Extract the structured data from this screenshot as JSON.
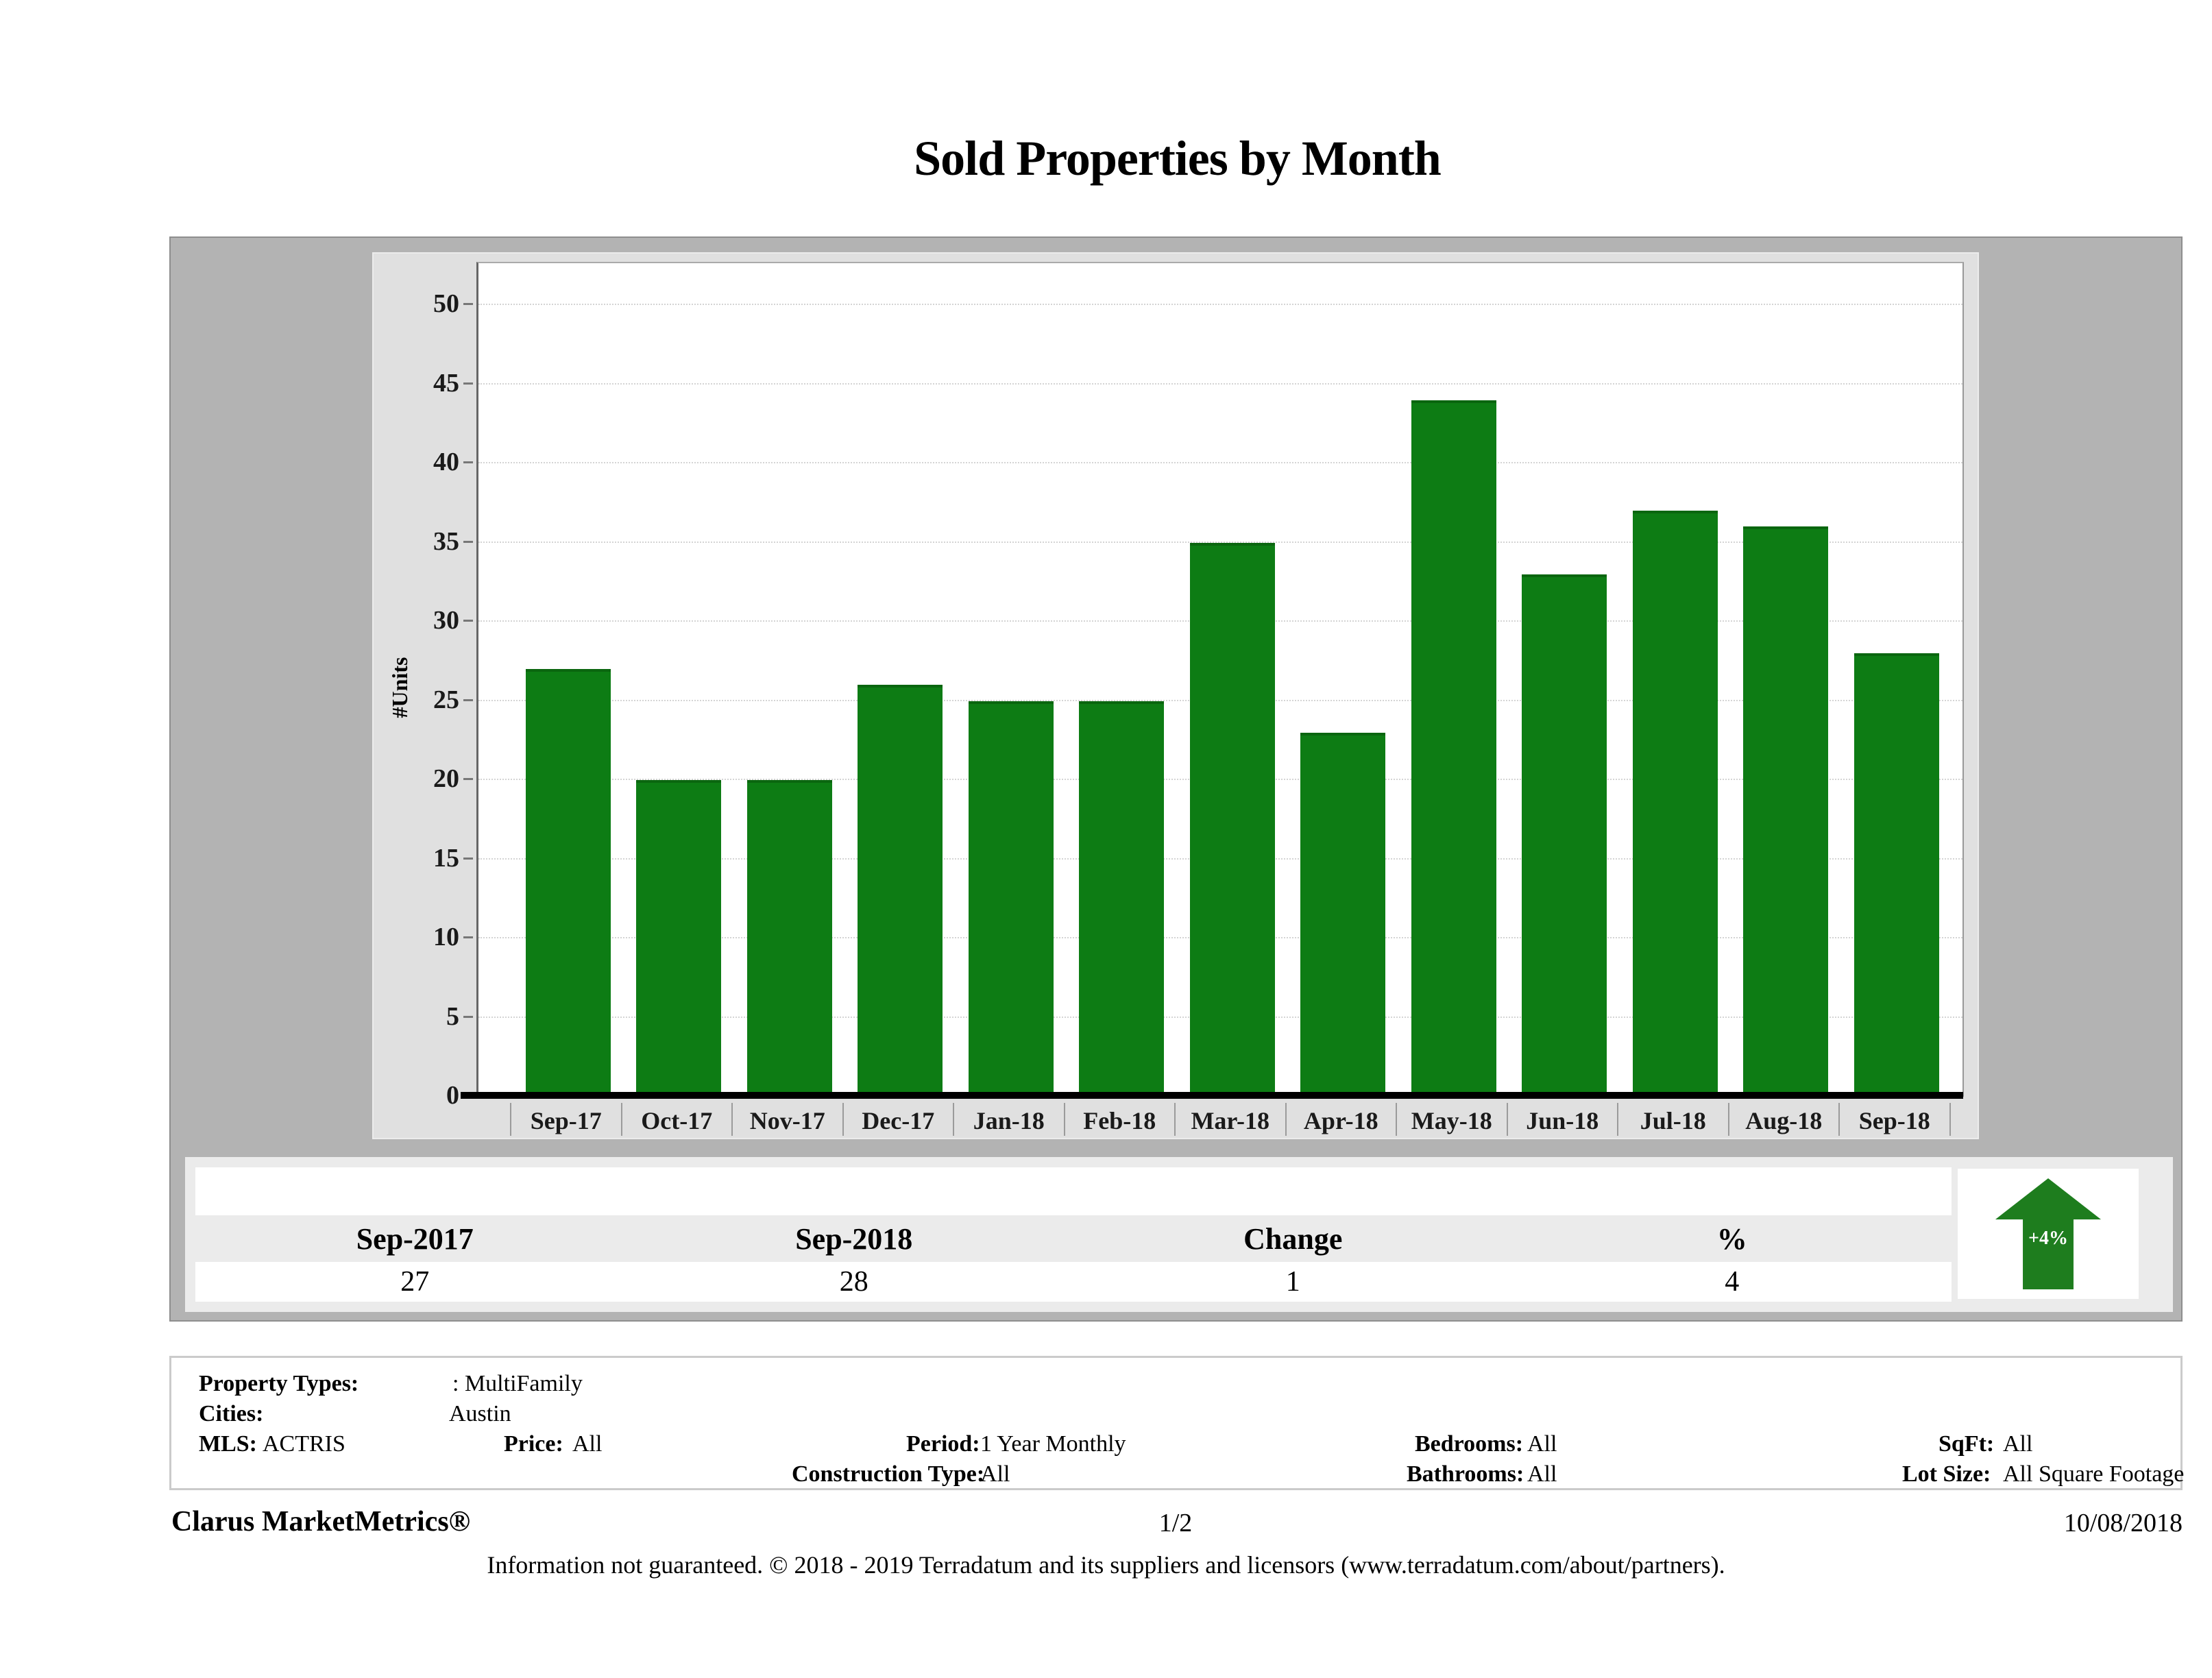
{
  "title": "Sold Properties by Month",
  "chart_data": {
    "type": "bar",
    "title": "Sold Properties by Month",
    "categories": [
      "Sep-17",
      "Oct-17",
      "Nov-17",
      "Dec-17",
      "Jan-18",
      "Feb-18",
      "Mar-18",
      "Apr-18",
      "May-18",
      "Jun-18",
      "Jul-18",
      "Aug-18",
      "Sep-18"
    ],
    "values": [
      27,
      20,
      20,
      26,
      25,
      25,
      35,
      23,
      44,
      33,
      37,
      36,
      28
    ],
    "xlabel": "",
    "ylabel": "#Units",
    "ylim": [
      0,
      50
    ],
    "ytick_step": 5,
    "grid": "horizontal-dotted",
    "legend": "none",
    "bar_color": "#0d7c14"
  },
  "summary_table": {
    "headers": [
      "Sep-2017",
      "Sep-2018",
      "Change",
      "%"
    ],
    "values": [
      "27",
      "28",
      "1",
      "4"
    ]
  },
  "trend_badge": {
    "label": "+4%",
    "direction": "up",
    "color": "#1e7d1e"
  },
  "filters": {
    "property_types_label": "Property Types:",
    "property_types_value": ": MultiFamily",
    "cities_label": "Cities:",
    "cities_value": "Austin",
    "mls_label": "MLS:",
    "mls_value": "ACTRIS",
    "price_label": "Price:",
    "price_value": "All",
    "period_label": "Period:",
    "period_value": "1 Year Monthly",
    "construction_label": "Construction Type:",
    "construction_value": "All",
    "bedrooms_label": "Bedrooms:",
    "bedrooms_value": "All",
    "bathrooms_label": "Bathrooms:",
    "bathrooms_value": "All",
    "sqft_label": "SqFt:",
    "sqft_value": "All",
    "lot_size_label": "Lot Size:",
    "lot_size_value": "All Square Footage"
  },
  "footer": {
    "brand": "Clarus MarketMetrics®",
    "page": "1/2",
    "date": "10/08/2018",
    "disclaimer": "Information not guaranteed. © 2018 - 2019 Terradatum and its suppliers and licensors (www.terradatum.com/about/partners)."
  }
}
